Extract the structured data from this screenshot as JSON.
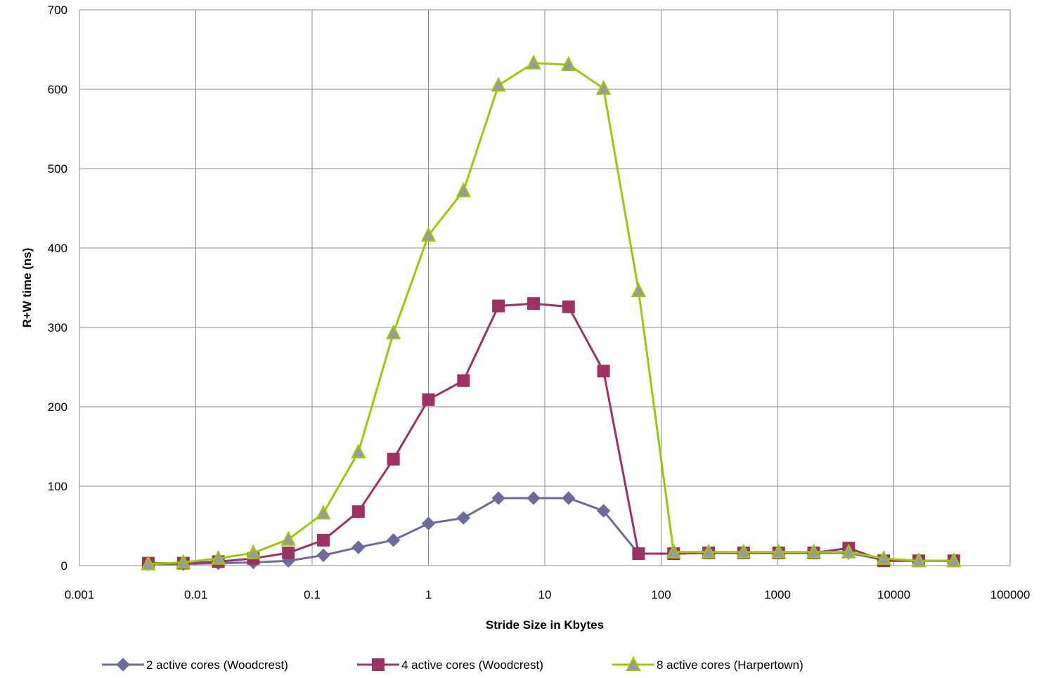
{
  "chart_data": {
    "type": "line",
    "title": "",
    "xlabel": "Stride Size in Kbytes",
    "ylabel": "R+W time (ns)",
    "x_scale": "log",
    "xlim": [
      0.001,
      100000
    ],
    "ylim": [
      0,
      700
    ],
    "x_ticks": [
      "0.001",
      "0.01",
      "0.1",
      "1",
      "10",
      "100",
      "1000",
      "10000",
      "100000"
    ],
    "y_ticks": [
      "0",
      "100",
      "200",
      "300",
      "400",
      "500",
      "600",
      "700"
    ],
    "grid": true,
    "legend_position": "bottom",
    "x": [
      0.00390625,
      0.0078125,
      0.015625,
      0.03125,
      0.0625,
      0.125,
      0.25,
      0.5,
      1,
      2,
      4,
      8,
      16,
      32,
      64,
      128,
      256,
      512,
      1024,
      2048,
      4096,
      8192,
      16384,
      32768
    ],
    "series": [
      {
        "name": "2 active cores (Woodcrest)",
        "color": "#6B6B9E",
        "marker": "diamond",
        "values": [
          2,
          2,
          3,
          4,
          6,
          13,
          23,
          32,
          53,
          60,
          85,
          85,
          85,
          69,
          15,
          15,
          16,
          16,
          16,
          16,
          16,
          7,
          6,
          6
        ]
      },
      {
        "name": "4 active cores (Woodcrest)",
        "color": "#9E3163",
        "marker": "square",
        "values": [
          3,
          3,
          5,
          9,
          16,
          32,
          68,
          134,
          209,
          233,
          327,
          330,
          326,
          245,
          15,
          15,
          16,
          16,
          16,
          16,
          22,
          6,
          6,
          6
        ]
      },
      {
        "name": "8 active cores (Harpertown)",
        "color": "#99CC00",
        "marker": "triangle",
        "values": [
          2,
          4,
          9,
          16,
          33,
          66,
          143,
          293,
          416,
          472,
          605,
          633,
          631,
          601,
          346,
          17,
          17,
          17,
          17,
          17,
          17,
          9,
          6,
          6
        ]
      }
    ]
  }
}
